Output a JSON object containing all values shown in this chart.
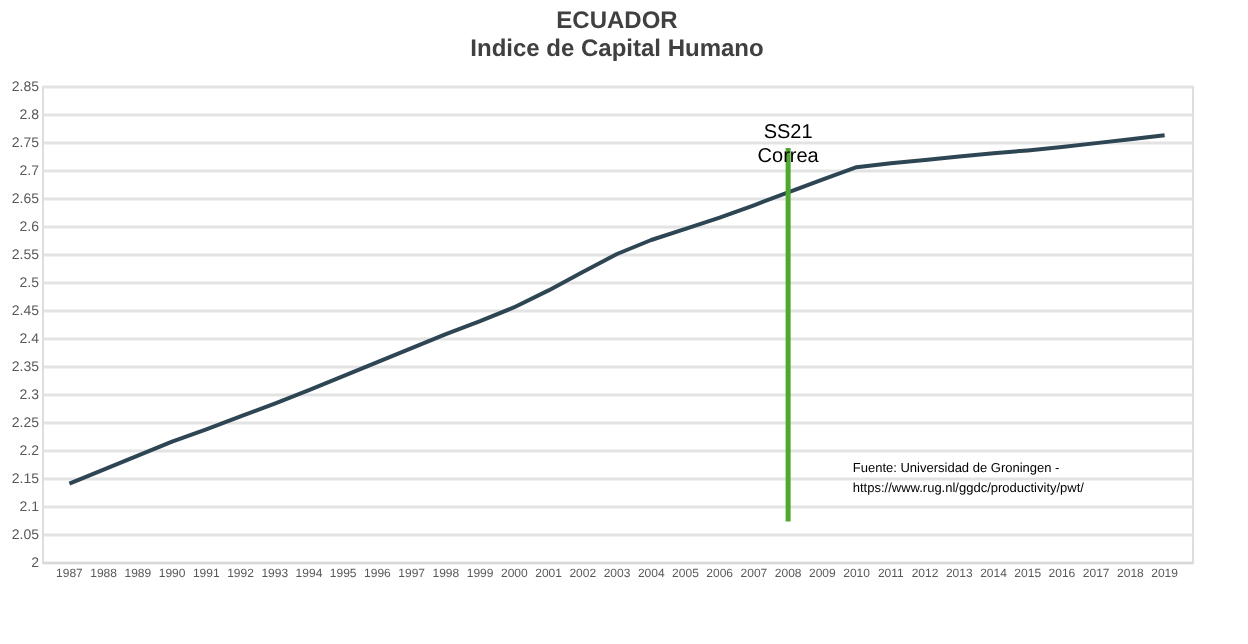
{
  "chart_data": {
    "type": "line",
    "title": "ECUADOR",
    "subtitle": "Indice de Capital Humano",
    "categories": [
      "1987",
      "1988",
      "1989",
      "1990",
      "1991",
      "1992",
      "1993",
      "1994",
      "1995",
      "1996",
      "1997",
      "1998",
      "1999",
      "2000",
      "2001",
      "2002",
      "2003",
      "2004",
      "2005",
      "2006",
      "2007",
      "2008",
      "2009",
      "2010",
      "2011",
      "2012",
      "2013",
      "2014",
      "2015",
      "2016",
      "2017",
      "2018",
      "2019"
    ],
    "series": [
      {
        "color": "#2e4654",
        "values": [
          2.14,
          2.165,
          2.19,
          2.215,
          2.237,
          2.26,
          2.283,
          2.307,
          2.332,
          2.357,
          2.382,
          2.407,
          2.43,
          2.455,
          2.485,
          2.518,
          2.55,
          2.575,
          2.595,
          2.615,
          2.637,
          2.66,
          2.683,
          2.705,
          2.712,
          2.718,
          2.724,
          2.73,
          2.735,
          2.741,
          2.748,
          2.755,
          2.762
        ]
      }
    ],
    "ylim": [
      2,
      2.85
    ],
    "yticks": [
      2,
      2.05,
      2.1,
      2.15,
      2.2,
      2.25,
      2.3,
      2.35,
      2.4,
      2.45,
      2.5,
      2.55,
      2.6,
      2.65,
      2.7,
      2.75,
      2.8,
      2.85
    ],
    "grid": "y",
    "marker": "none",
    "line_style": "solid",
    "ref_lines": [
      {
        "axis": "x",
        "value": "2008",
        "label": "SS21\nCorrea",
        "color": "#4ea72e"
      }
    ],
    "annotations": [
      "Fuente: Universidad de Groningen -\nhttps://www.rug.nl/ggdc/productivity/pwt/"
    ]
  }
}
